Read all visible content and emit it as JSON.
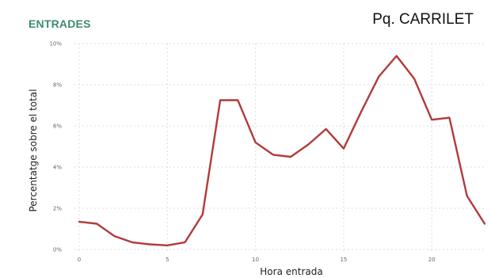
{
  "header": {
    "section_title": "ENTRADES",
    "location": "Pq. CARRILET"
  },
  "colors": {
    "line": "#b23a3a",
    "grid": "#dcdcdc",
    "section_title": "#3f8a6f"
  },
  "chart_data": {
    "type": "line",
    "title": "",
    "xlabel": "Hora entrada",
    "ylabel": "Percentatge sobre el total",
    "xlim": [
      0,
      23
    ],
    "ylim": [
      0,
      10
    ],
    "x_ticks": [
      0,
      5,
      10,
      15,
      20
    ],
    "x_tick_labels": [
      "0",
      "5",
      "10",
      "15",
      "20"
    ],
    "y_ticks": [
      0,
      2,
      4,
      6,
      8,
      10
    ],
    "y_tick_labels": [
      "0%",
      "2%",
      "4%",
      "6%",
      "8%",
      "10%"
    ],
    "grid": true,
    "series": [
      {
        "x": [
          0,
          1,
          2,
          3,
          4,
          5,
          6,
          7,
          8,
          9,
          10,
          11,
          12,
          13,
          14,
          15,
          16,
          17,
          18,
          19,
          20,
          21,
          22,
          23
        ],
        "values": [
          1.35,
          1.25,
          0.65,
          0.35,
          0.25,
          0.2,
          0.35,
          1.7,
          7.25,
          7.25,
          5.2,
          4.6,
          4.5,
          5.1,
          5.85,
          4.9,
          6.7,
          8.4,
          9.4,
          8.3,
          6.3,
          6.4,
          2.6,
          1.25
        ]
      }
    ]
  }
}
